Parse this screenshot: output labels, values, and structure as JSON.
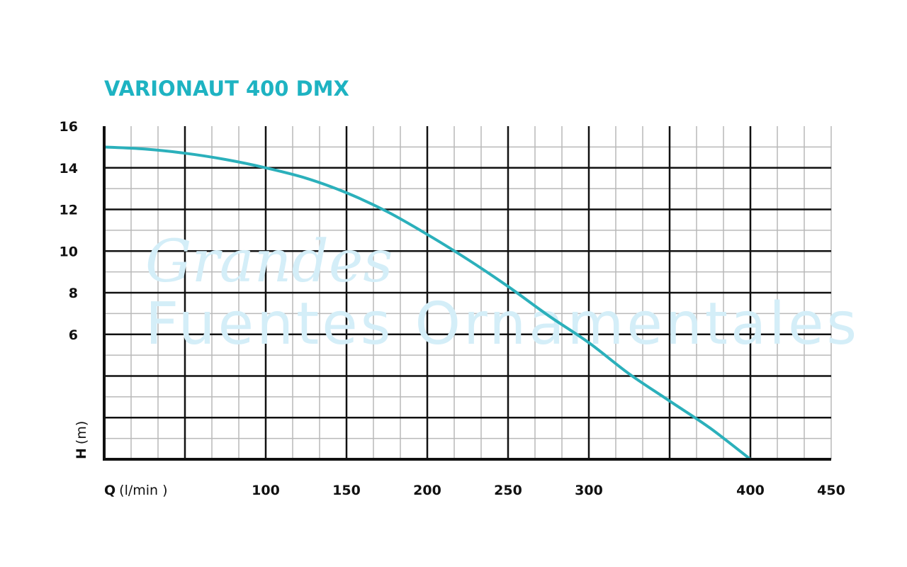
{
  "colors": {
    "title": "#1eb3c2",
    "curve": "#2bb0bb",
    "grid_major": "#111111",
    "grid_minor": "#b9b9b9",
    "watermark": "#d4eef8"
  },
  "watermark": {
    "line1": "Grandes",
    "line2": "Fuentes Ornamentales"
  },
  "chart_data": {
    "type": "line",
    "title": "VARIONAUT 400 DMX",
    "xlabel_letter": "Q",
    "xlabel_unit": "(l/min )",
    "ylabel_letter": "H",
    "ylabel_unit": "(m)",
    "xlim": [
      0,
      450
    ],
    "ylim": [
      0,
      16
    ],
    "x_ticks": [
      100,
      150,
      200,
      250,
      300,
      400,
      450
    ],
    "x_tick_labels": [
      "100",
      "150",
      "200",
      "250",
      "300",
      "400",
      "450"
    ],
    "y_ticks": [
      6,
      8,
      10,
      12,
      14,
      16
    ],
    "y_tick_labels": [
      "6",
      "8",
      "10",
      "12",
      "14",
      "16"
    ],
    "x_minor_step": 16.667,
    "x_major_step": 50,
    "y_minor_step": 1,
    "y_major_step": 2,
    "grid": true,
    "series": [
      {
        "x": [
          0,
          25,
          50,
          75,
          100,
          125,
          150,
          175,
          200,
          225,
          250,
          275,
          300,
          325,
          350,
          375,
          400
        ],
        "y": [
          15.0,
          14.9,
          14.7,
          14.4,
          14.0,
          13.5,
          12.8,
          11.9,
          10.8,
          9.6,
          8.3,
          6.9,
          5.6,
          4.1,
          2.8,
          1.5,
          0.0
        ]
      }
    ]
  }
}
